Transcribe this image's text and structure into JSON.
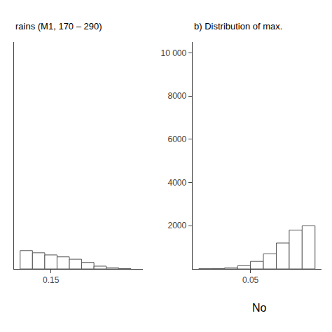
{
  "chart_data": [
    {
      "type": "histogram",
      "title": "rains (M1, 170 – 290)",
      "bins": [
        0.1,
        0.12,
        0.14,
        0.16,
        0.18,
        0.2,
        0.22,
        0.24,
        0.26,
        0.28
      ],
      "values": [
        850,
        750,
        650,
        560,
        450,
        300,
        130,
        55,
        20
      ],
      "color": "#555555",
      "xlim": [
        0.09,
        0.3
      ],
      "xticks": [
        0.15
      ],
      "ylim": [
        0,
        10500
      ],
      "yticks": [],
      "grid": false,
      "tick_labels": "x"
    },
    {
      "type": "histogram",
      "title": "b) Distribution of max.",
      "bins": [
        0.01,
        0.02,
        0.03,
        0.04,
        0.05,
        0.06,
        0.07,
        0.08,
        0.09,
        0.1
      ],
      "values": [
        10,
        20,
        50,
        150,
        350,
        700,
        1200,
        1800,
        2000
      ],
      "color": "#555555",
      "xlim": [
        0.005,
        0.105
      ],
      "xticks": [
        0.05
      ],
      "ylim": [
        0,
        10500
      ],
      "yticks": [
        2000,
        4000,
        6000,
        8000,
        {
          "value": 10000,
          "label": "10 000"
        }
      ],
      "grid": false,
      "annotations": [
        "No"
      ]
    }
  ]
}
